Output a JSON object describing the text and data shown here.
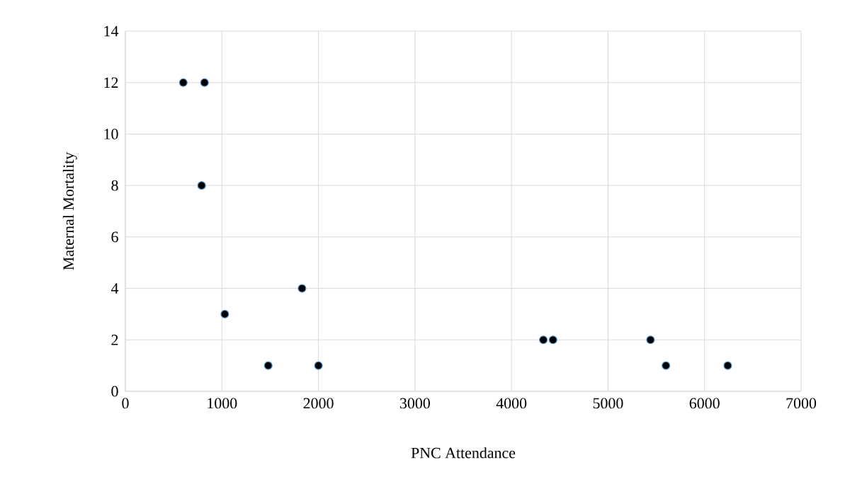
{
  "chart_data": {
    "type": "scatter",
    "xlabel": "PNC Attendance",
    "ylabel": "Maternal Mortality",
    "x": [
      600,
      820,
      790,
      1030,
      1830,
      1480,
      2000,
      4330,
      4430,
      5440,
      5600,
      6240
    ],
    "series": [
      {
        "color": "#000000",
        "values": [
          12,
          12,
          8,
          3,
          4,
          1,
          1,
          2,
          2,
          2,
          1,
          1
        ]
      }
    ],
    "xlim": [
      0,
      7000
    ],
    "xticks": [
      0,
      1000,
      2000,
      3000,
      4000,
      5000,
      6000,
      7000
    ],
    "ylim": [
      0,
      14
    ],
    "yticks": [
      0,
      2,
      4,
      6,
      8,
      10,
      12,
      14
    ],
    "grid": true,
    "marker": "circle"
  }
}
